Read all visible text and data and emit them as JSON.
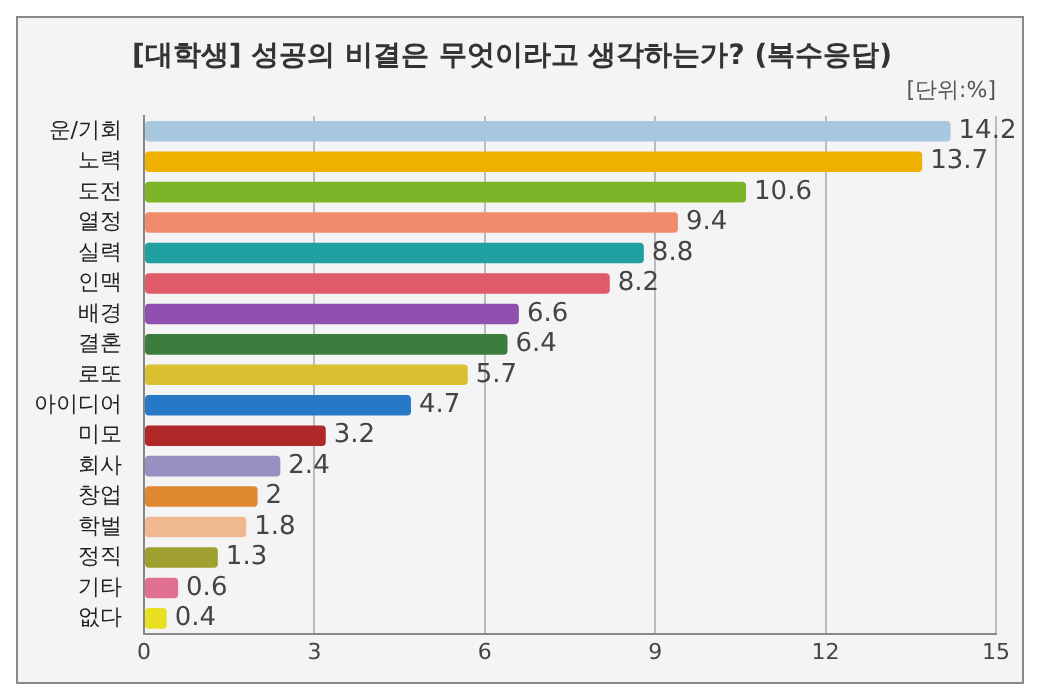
{
  "chart_data": {
    "type": "bar",
    "orientation": "horizontal",
    "title": "[대학생] 성공의 비결은 무엇이라고 생각하는가? (복수응답)",
    "subtitle": "[단위:%]",
    "categories": [
      "운/기회",
      "노력",
      "도전",
      "열정",
      "실력",
      "인맥",
      "배경",
      "결혼",
      "로또",
      "아이디어",
      "미모",
      "회사",
      "창업",
      "학벌",
      "정직",
      "기타",
      "없다"
    ],
    "values": [
      14.2,
      13.7,
      10.6,
      9.4,
      8.8,
      8.2,
      6.6,
      6.4,
      5.7,
      4.7,
      3.2,
      2.4,
      2,
      1.8,
      1.3,
      0.6,
      0.4
    ],
    "colors": [
      "#a8c8e0",
      "#f0b000",
      "#7cb428",
      "#f08c6c",
      "#20a0a0",
      "#e05a6a",
      "#9050b0",
      "#3c7c3c",
      "#d8c030",
      "#2878c8",
      "#b02828",
      "#9890c0",
      "#e08830",
      "#f0b890",
      "#a0a030",
      "#e07090",
      "#e8e020"
    ],
    "xlim": [
      0,
      15
    ],
    "xticks": [
      0,
      3,
      6,
      9,
      12,
      15
    ],
    "grid": "x",
    "data_labels": true,
    "legend": false
  }
}
